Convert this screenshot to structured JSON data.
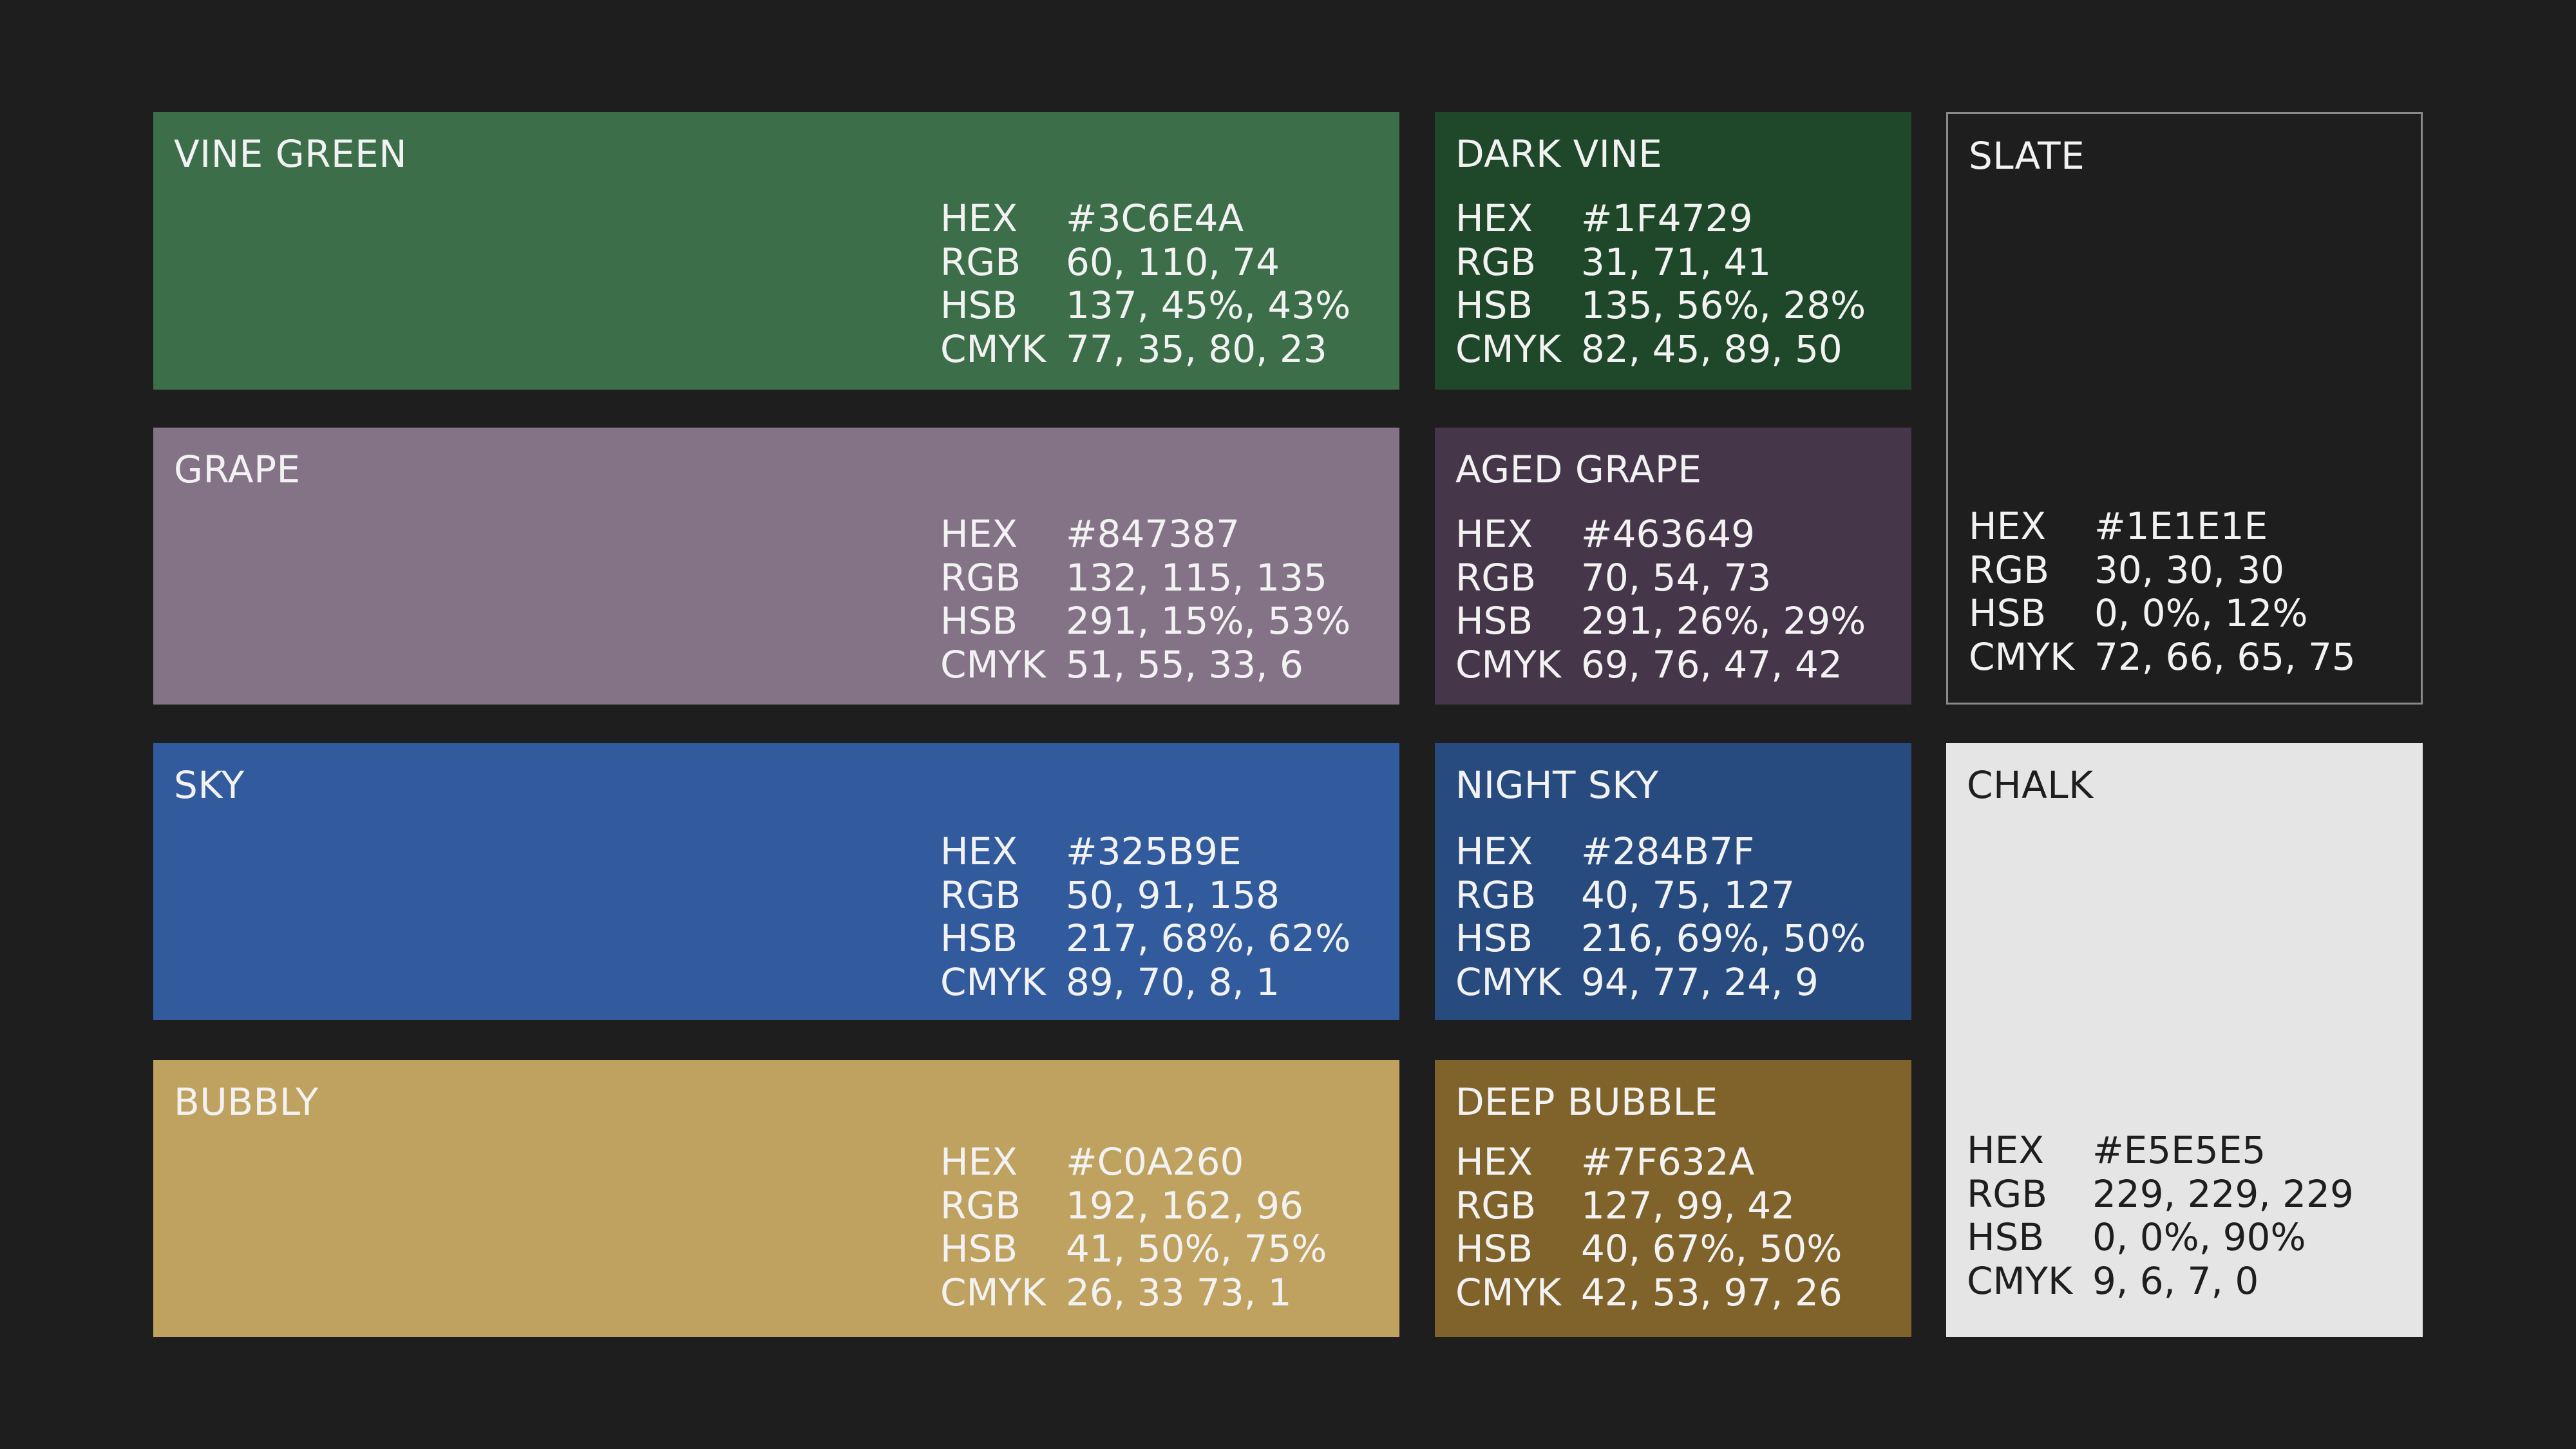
{
  "labels": {
    "hex": "HEX",
    "rgb": "RGB",
    "hsb": "HSB",
    "cmyk": "CMYK"
  },
  "swatches": {
    "vine_green": {
      "name": "VINE GREEN",
      "color": "#3C6E4A",
      "hex": "#3C6E4A",
      "rgb": "60, 110, 74",
      "hsb": "137, 45%, 43%",
      "cmyk": "77, 35, 80, 23"
    },
    "dark_vine": {
      "name": "DARK VINE",
      "color": "#1F4729",
      "hex": "#1F4729",
      "rgb": "31, 71, 41",
      "hsb": "135, 56%, 28%",
      "cmyk": "82, 45, 89, 50"
    },
    "slate": {
      "name": "SLATE",
      "color": "#1E1E1E",
      "hex": "#1E1E1E",
      "rgb": "30, 30, 30",
      "hsb": "0, 0%, 12%",
      "cmyk": "72, 66, 65, 75"
    },
    "grape": {
      "name": "GRAPE",
      "color": "#847387",
      "hex": "#847387",
      "rgb": "132, 115, 135",
      "hsb": "291, 15%, 53%",
      "cmyk": "51, 55, 33, 6"
    },
    "aged_grape": {
      "name": "AGED GRAPE",
      "color": "#463649",
      "hex": "#463649",
      "rgb": "70, 54, 73",
      "hsb": "291, 26%, 29%",
      "cmyk": "69, 76, 47, 42"
    },
    "sky": {
      "name": "SKY",
      "color": "#325B9E",
      "hex": "#325B9E",
      "rgb": "50, 91, 158",
      "hsb": "217, 68%, 62%",
      "cmyk": "89, 70, 8, 1"
    },
    "night_sky": {
      "name": "NIGHT SKY",
      "color": "#284B7F",
      "hex": "#284B7F",
      "rgb": "40, 75, 127",
      "hsb": "216, 69%, 50%",
      "cmyk": "94, 77, 24, 9"
    },
    "chalk": {
      "name": "CHALK",
      "color": "#E5E5E5",
      "hex": "#E5E5E5",
      "rgb": "229, 229, 229",
      "hsb": "0, 0%, 90%",
      "cmyk": "9, 6, 7, 0"
    },
    "bubbly": {
      "name": "BUBBLY",
      "color": "#C0A260",
      "hex": "#C0A260",
      "rgb": "192, 162, 96",
      "hsb": "41, 50%, 75%",
      "cmyk": "26, 33 73, 1"
    },
    "deep_bubble": {
      "name": "DEEP BUBBLE",
      "color": "#7F632A",
      "hex": "#7F632A",
      "rgb": "127, 99, 42",
      "hsb": "40, 67%, 50%",
      "cmyk": "42, 53, 97, 26"
    }
  },
  "colors": {
    "background": "#1E1E1E",
    "slate_border": "#8A8A8A",
    "text_light": "#F2F2F2",
    "text_dark": "#1E1E1E"
  }
}
